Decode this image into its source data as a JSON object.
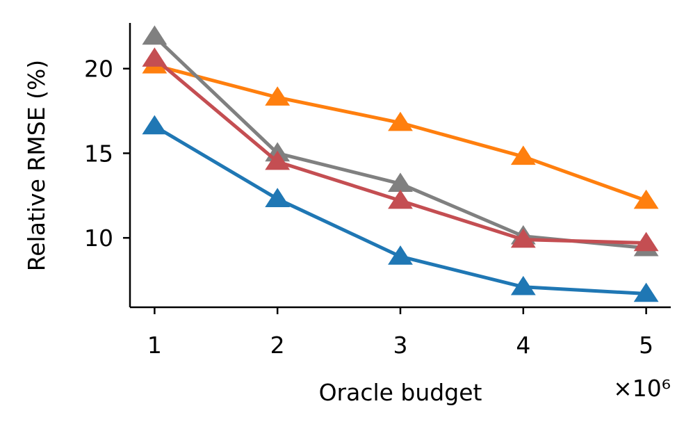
{
  "chart_data": {
    "type": "line",
    "title": "",
    "xlabel": "Oracle budget",
    "ylabel": "Relative RMSE (%)",
    "x_scale_label": "×10⁶",
    "x": [
      1,
      2,
      3,
      4,
      5
    ],
    "xticks": [
      "1",
      "2",
      "3",
      "4",
      "5"
    ],
    "yticks": [
      "10",
      "15",
      "20"
    ],
    "xlim": [
      0.8,
      5.2
    ],
    "ylim": [
      5.9,
      22.7
    ],
    "grid": false,
    "marker": "triangle",
    "series": [
      {
        "color": "#1f77b4",
        "values": [
          16.6,
          12.3,
          8.9,
          7.1,
          6.7
        ]
      },
      {
        "color": "#ff7f0e",
        "values": [
          20.2,
          18.3,
          16.8,
          14.8,
          12.2
        ]
      },
      {
        "color": "#808080",
        "values": [
          21.9,
          15.0,
          13.2,
          10.1,
          9.4
        ]
      },
      {
        "color": "#c44e52",
        "values": [
          20.6,
          14.5,
          12.2,
          9.9,
          9.7
        ]
      }
    ]
  }
}
